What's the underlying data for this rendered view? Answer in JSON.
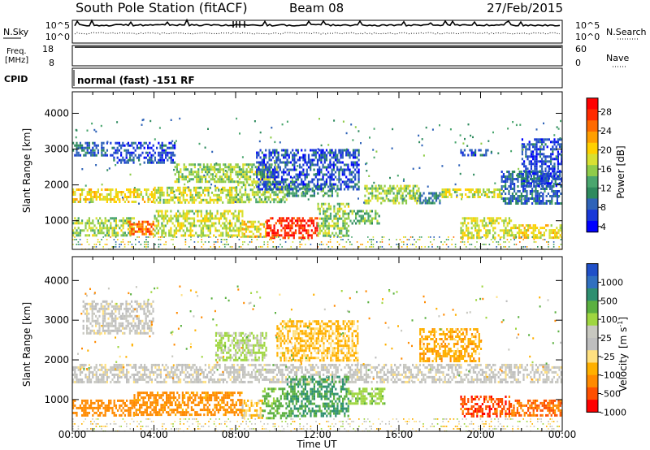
{
  "header": {
    "title": "South Pole Station (fitACF)",
    "beam": "Beam 08",
    "date": "27/Feb/2015"
  },
  "panels": {
    "nsky": {
      "label": "N.Sky",
      "left_ticks": [
        "10^5",
        "10^0"
      ],
      "right_ticks": [
        "10^5",
        "10^0"
      ],
      "right_label": "N.Search"
    },
    "freq": {
      "label_line1": "Freq.",
      "label_line2": "[MHz]",
      "left_ticks": [
        "18",
        "8"
      ],
      "right_ticks": [
        "60",
        "0"
      ],
      "right_label": "Nave",
      "freq_level": 0.92,
      "nave_level": 0.55
    },
    "cpid": {
      "label": "CPID",
      "value": "normal (fast) -151 RF"
    }
  },
  "chart_data": [
    {
      "type": "heatmap",
      "name": "power",
      "xlabel": "Time UT",
      "ylabel": "Slant Range [km]",
      "xlim": [
        0,
        24
      ],
      "ylim": [
        200,
        4600
      ],
      "x_ticks": [
        "00:00",
        "04:00",
        "08:00",
        "12:00",
        "16:00",
        "20:00",
        "00:00"
      ],
      "y_ticks": [
        1000,
        2000,
        3000,
        4000
      ],
      "colorbar": {
        "label": "Power [dB]",
        "ticks": [
          "28",
          "24",
          "20",
          "16",
          "12",
          "8",
          "4"
        ],
        "colors": [
          "#ff0000",
          "#ff2a00",
          "#ff6a00",
          "#ff9f00",
          "#ffd000",
          "#d8e032",
          "#8fcc4a",
          "#4aa66e",
          "#2e8a5e",
          "#2f63b8",
          "#1838d8",
          "#0000ff"
        ]
      },
      "regions": [
        {
          "t": [
            0,
            4
          ],
          "r": [
            1550,
            1900
          ],
          "v": 18
        },
        {
          "t": [
            4,
            8
          ],
          "r": [
            1500,
            1950
          ],
          "v": 16
        },
        {
          "t": [
            8,
            10.5
          ],
          "r": [
            1500,
            2100
          ],
          "v": 14
        },
        {
          "t": [
            10.5,
            13
          ],
          "r": [
            1700,
            2000
          ],
          "v": 10
        },
        {
          "t": [
            14.3,
            17
          ],
          "r": [
            1500,
            2000
          ],
          "v": 14
        },
        {
          "t": [
            17,
            18
          ],
          "r": [
            1500,
            1800
          ],
          "v": 8
        },
        {
          "t": [
            18,
            21
          ],
          "r": [
            1650,
            1900
          ],
          "v": 16
        },
        {
          "t": [
            21,
            24
          ],
          "r": [
            1500,
            2400
          ],
          "v": 6
        },
        {
          "t": [
            0,
            3
          ],
          "r": [
            600,
            1100
          ],
          "v": 14
        },
        {
          "t": [
            2.7,
            4
          ],
          "r": [
            600,
            1000
          ],
          "v": 24
        },
        {
          "t": [
            4,
            8.3
          ],
          "r": [
            600,
            1300
          ],
          "v": 16
        },
        {
          "t": [
            8.3,
            9.5
          ],
          "r": [
            550,
            1000
          ],
          "v": 18
        },
        {
          "t": [
            9.5,
            12
          ],
          "r": [
            550,
            1100
          ],
          "v": 28
        },
        {
          "t": [
            12,
            13.5
          ],
          "r": [
            600,
            1500
          ],
          "v": 14
        },
        {
          "t": [
            13.5,
            15
          ],
          "r": [
            900,
            1300
          ],
          "v": 12
        },
        {
          "t": [
            19,
            21.5
          ],
          "r": [
            550,
            1100
          ],
          "v": 16
        },
        {
          "t": [
            21.5,
            24
          ],
          "r": [
            550,
            900
          ],
          "v": 18
        },
        {
          "t": [
            0,
            2
          ],
          "r": [
            2850,
            3200
          ],
          "v": 6
        },
        {
          "t": [
            2,
            5
          ],
          "r": [
            2600,
            3200
          ],
          "v": 4
        },
        {
          "t": [
            5,
            10
          ],
          "r": [
            2100,
            2600
          ],
          "v": 14
        },
        {
          "t": [
            9,
            14
          ],
          "r": [
            1900,
            3000
          ],
          "v": 4
        },
        {
          "t": [
            19,
            20.5
          ],
          "r": [
            2800,
            3000
          ],
          "v": 4
        },
        {
          "t": [
            22,
            24
          ],
          "r": [
            2000,
            3300
          ],
          "v": 4
        }
      ]
    },
    {
      "type": "heatmap",
      "name": "velocity",
      "xlabel": "Time UT",
      "ylabel": "Slant Range [km]",
      "xlim": [
        0,
        24
      ],
      "ylim": [
        200,
        4600
      ],
      "x_ticks": [
        "00:00",
        "04:00",
        "08:00",
        "12:00",
        "16:00",
        "20:00",
        "00:00"
      ],
      "y_ticks": [
        1000,
        2000,
        3000,
        4000
      ],
      "colorbar": {
        "label_main": "Velocity",
        "label_unit": "[m s",
        "label_exp": "-1",
        "label_close": "]",
        "ticks": [
          "1000",
          "500",
          "100",
          "25",
          "-25",
          "-100",
          "-500",
          "-1000"
        ],
        "colors": [
          "#2050c8",
          "#3070c0",
          "#2e8f70",
          "#5bb040",
          "#9fd640",
          "#c8c8c0",
          "#bebebe",
          "#ffe080",
          "#ffb000",
          "#ff8a00",
          "#ff5000",
          "#ff0000"
        ]
      },
      "regions": [
        {
          "t": [
            0,
            24
          ],
          "r": [
            1450,
            1900
          ],
          "v": 0
        },
        {
          "t": [
            0,
            3
          ],
          "r": [
            600,
            1000
          ],
          "v": -200
        },
        {
          "t": [
            3,
            8.3
          ],
          "r": [
            600,
            1200
          ],
          "v": -150
        },
        {
          "t": [
            8.3,
            9.3
          ],
          "r": [
            550,
            1000
          ],
          "v": -50
        },
        {
          "t": [
            9.3,
            10.5
          ],
          "r": [
            550,
            1300
          ],
          "v": 150
        },
        {
          "t": [
            10.5,
            13.5
          ],
          "r": [
            600,
            1600
          ],
          "v": 300
        },
        {
          "t": [
            13.5,
            15.3
          ],
          "r": [
            900,
            1300
          ],
          "v": 80
        },
        {
          "t": [
            19,
            21.5
          ],
          "r": [
            550,
            1100
          ],
          "v": -400
        },
        {
          "t": [
            21.5,
            24
          ],
          "r": [
            600,
            1000
          ],
          "v": -300
        },
        {
          "t": [
            0.5,
            4
          ],
          "r": [
            2700,
            3500
          ],
          "v": 0
        },
        {
          "t": [
            7,
            9.5
          ],
          "r": [
            2000,
            2700
          ],
          "v": 60
        },
        {
          "t": [
            10,
            14
          ],
          "r": [
            2000,
            3000
          ],
          "v": -60
        },
        {
          "t": [
            17,
            20
          ],
          "r": [
            2000,
            2800
          ],
          "v": -80
        }
      ]
    }
  ]
}
